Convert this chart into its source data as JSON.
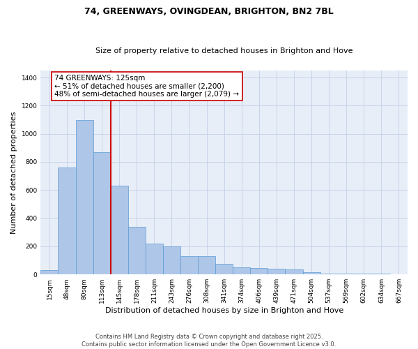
{
  "title_line1": "74, GREENWAYS, OVINGDEAN, BRIGHTON, BN2 7BL",
  "title_line2": "Size of property relative to detached houses in Brighton and Hove",
  "xlabel": "Distribution of detached houses by size in Brighton and Hove",
  "ylabel": "Number of detached properties",
  "categories": [
    "15sqm",
    "48sqm",
    "80sqm",
    "113sqm",
    "145sqm",
    "178sqm",
    "211sqm",
    "243sqm",
    "276sqm",
    "308sqm",
    "341sqm",
    "374sqm",
    "406sqm",
    "439sqm",
    "471sqm",
    "504sqm",
    "537sqm",
    "569sqm",
    "602sqm",
    "634sqm",
    "667sqm"
  ],
  "values": [
    30,
    760,
    1100,
    870,
    630,
    340,
    220,
    200,
    130,
    130,
    75,
    50,
    45,
    40,
    35,
    18,
    8,
    5,
    4,
    4,
    3
  ],
  "bar_color": "#aec6e8",
  "bar_edge_color": "#5a9bd5",
  "vline_color": "#cc0000",
  "annotation_text": "74 GREENWAYS: 125sqm\n← 51% of detached houses are smaller (2,200)\n48% of semi-detached houses are larger (2,079) →",
  "annotation_box_color": "#cc0000",
  "ylim": [
    0,
    1450
  ],
  "yticks": [
    0,
    200,
    400,
    600,
    800,
    1000,
    1200,
    1400
  ],
  "grid_color": "#c8d4e8",
  "background_color": "#e8eef8",
  "footer": "Contains HM Land Registry data © Crown copyright and database right 2025.\nContains public sector information licensed under the Open Government Licence v3.0.",
  "title_fontsize": 9,
  "subtitle_fontsize": 8,
  "axis_label_fontsize": 8,
  "tick_fontsize": 6.5,
  "footer_fontsize": 6,
  "annotation_fontsize": 7.5
}
